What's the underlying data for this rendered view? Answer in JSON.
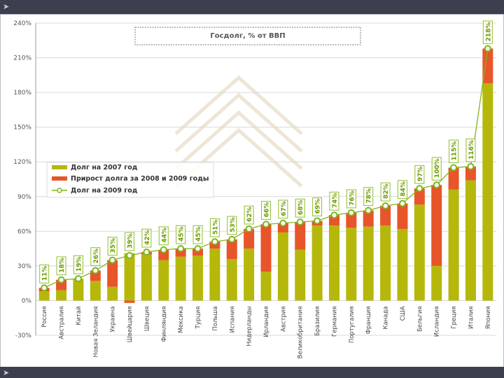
{
  "chart_data": {
    "type": "bar",
    "title": "Госдолг, % от ВВП",
    "ylim": [
      -30,
      240
    ],
    "yticks": [
      -30,
      0,
      30,
      60,
      90,
      120,
      150,
      180,
      210,
      240
    ],
    "ytick_labels": [
      "-30%",
      "0%",
      "30%",
      "60%",
      "90%",
      "120%",
      "150%",
      "180%",
      "210%",
      "240%"
    ],
    "categories": [
      "Россия",
      "Австралия",
      "Китай",
      "Новая Зеландия",
      "Украина",
      "Швейцария",
      "Швеция",
      "Финляндия",
      "Мексика",
      "Турция",
      "Польша",
      "Испания",
      "Нидерланды",
      "Ирландия",
      "Австрия",
      "Великобритания",
      "Бразилия",
      "Германия",
      "Португалия",
      "Франция",
      "Канада",
      "США",
      "Бельгия",
      "Исландия",
      "Греция",
      "Италия",
      "Япония"
    ],
    "series": [
      {
        "name": "Долг на 2007 год",
        "color": "#b5b80a",
        "values": [
          8,
          9,
          19,
          17,
          12,
          41,
          40,
          35,
          38,
          39,
          45,
          36,
          45,
          25,
          59,
          44,
          65,
          65,
          63,
          64,
          65,
          62,
          83,
          30,
          96,
          104,
          188
        ]
      },
      {
        "name": "Прирост долга за 2008 и 2009 годы",
        "color": "#e8552a",
        "values": [
          3,
          9,
          0,
          9,
          23,
          -2,
          2,
          9,
          7,
          6,
          6,
          17,
          17,
          41,
          8,
          24,
          4,
          9,
          13,
          14,
          17,
          22,
          14,
          70,
          19,
          12,
          30
        ]
      },
      {
        "name": "Долг на 2009 год",
        "color": "#7fb51c",
        "values": [
          11,
          18,
          19,
          26,
          35,
          39,
          42,
          44,
          45,
          45,
          51,
          53,
          62,
          66,
          67,
          68,
          69,
          74,
          76,
          78,
          82,
          84,
          97,
          100,
          115,
          116,
          218
        ]
      }
    ],
    "data_labels": [
      "11%",
      "18%",
      "19%",
      "26%",
      "35%",
      "39%",
      "42%",
      "44%",
      "45%",
      "45%",
      "51%",
      "53%",
      "62%",
      "66%",
      "67%",
      "68%",
      "69%",
      "74%",
      "76%",
      "78%",
      "82%",
      "84%",
      "97%",
      "100%",
      "115%",
      "116%",
      "218%"
    ],
    "legend_position": "middle-left"
  },
  "legend": {
    "items": [
      {
        "label": "Долг на 2007 год"
      },
      {
        "label": "Прирост долга за 2008 и 2009 годы"
      },
      {
        "label": "Долг на 2009 год"
      }
    ]
  }
}
